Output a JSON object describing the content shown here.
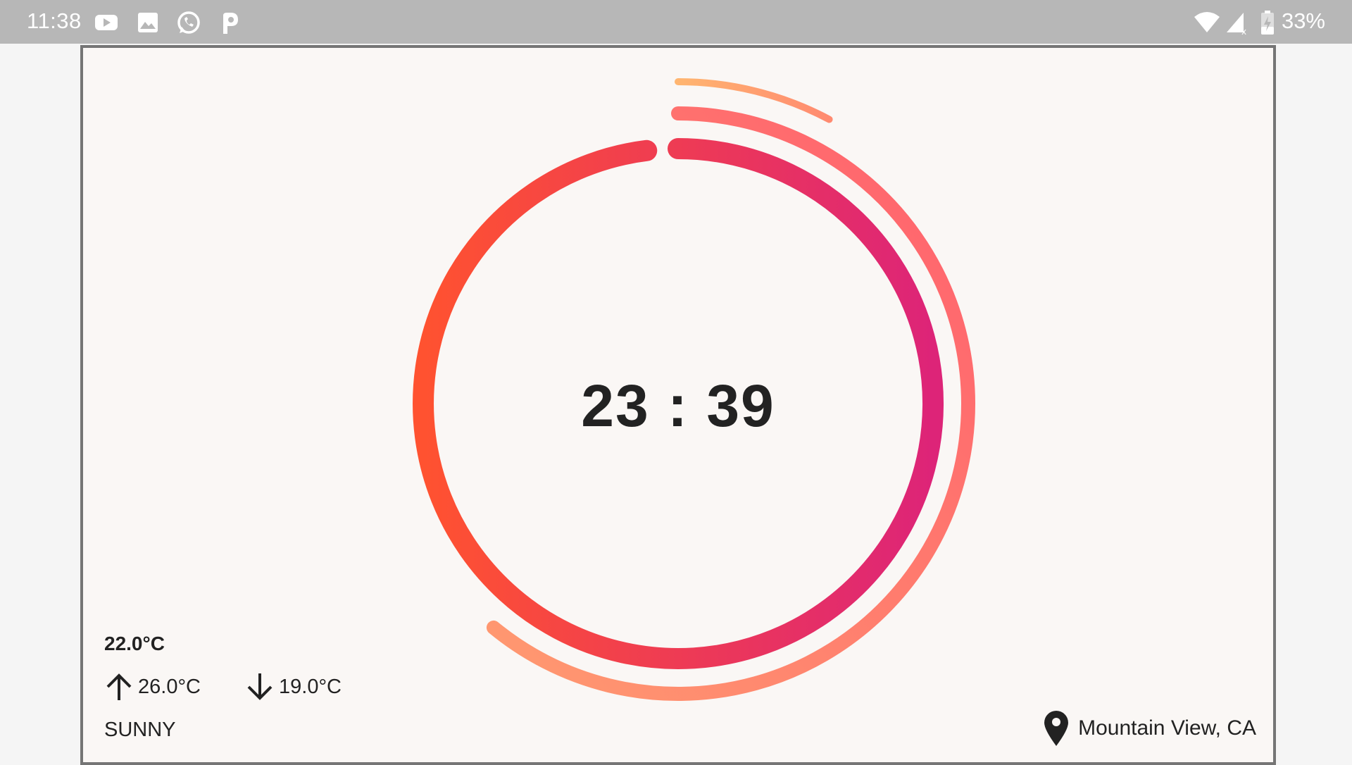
{
  "status_bar": {
    "time": "11:38",
    "battery": "33%",
    "notification_icons": [
      "youtube-icon",
      "gallery-icon",
      "whatsapp-icon",
      "p-app-icon"
    ],
    "system_icons": [
      "wifi-icon",
      "signal-icon",
      "battery-icon"
    ]
  },
  "clock": {
    "time": "23 : 39",
    "hour": 23,
    "minute": 39,
    "ring_colors": {
      "inner_start": "#ff5230",
      "inner_end": "#dd2478",
      "middle_start": "#ff9a70",
      "middle_end": "#ff5f6d",
      "outer_start": "#ffb570",
      "outer_end": "#ff8a70"
    }
  },
  "weather": {
    "current_temp": "22.0°C",
    "max_temp": "26.0°C",
    "min_temp": "19.0°C",
    "condition": "SUNNY"
  },
  "location": {
    "name": "Mountain View, CA"
  }
}
